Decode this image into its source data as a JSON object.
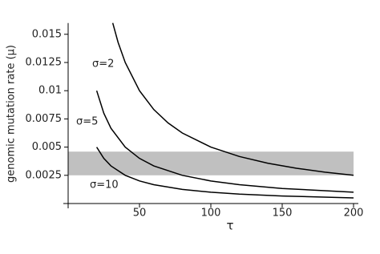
{
  "chart_data": {
    "type": "line",
    "xlabel": "τ",
    "ylabel": "genomic mutation rate (μ)",
    "xlim": [
      0,
      200
    ],
    "ylim": [
      0,
      0.016
    ],
    "xticks": [
      50,
      100,
      150,
      200
    ],
    "yticks": [
      0.0025,
      0.005,
      0.0075,
      0.01,
      0.0125,
      0.015
    ],
    "band": {
      "values": [
        0.0025,
        0.0046
      ],
      "color": "#c0c0c0"
    },
    "series": [
      {
        "name": "σ=2",
        "color": "#000000",
        "x": [
          31.25,
          35,
          40,
          50,
          60,
          70,
          80,
          100,
          120,
          140,
          160,
          180,
          200
        ],
        "values": [
          0.016,
          0.014286,
          0.0125,
          0.01,
          0.008333,
          0.007143,
          0.00625,
          0.005,
          0.004167,
          0.003571,
          0.003125,
          0.002778,
          0.0025
        ]
      },
      {
        "name": "σ=5",
        "color": "#000000",
        "x": [
          20,
          25,
          30,
          40,
          50,
          60,
          80,
          100,
          120,
          150,
          200
        ],
        "values": [
          0.01,
          0.008,
          0.006667,
          0.005,
          0.004,
          0.003333,
          0.0025,
          0.002,
          0.001667,
          0.001333,
          0.001
        ]
      },
      {
        "name": "σ=10",
        "color": "#000000",
        "x": [
          20,
          25,
          30,
          40,
          50,
          60,
          80,
          100,
          120,
          150,
          200
        ],
        "values": [
          0.005,
          0.004,
          0.003333,
          0.0025,
          0.002,
          0.001667,
          0.00125,
          0.001,
          0.000833,
          0.000667,
          0.0005
        ]
      }
    ]
  }
}
